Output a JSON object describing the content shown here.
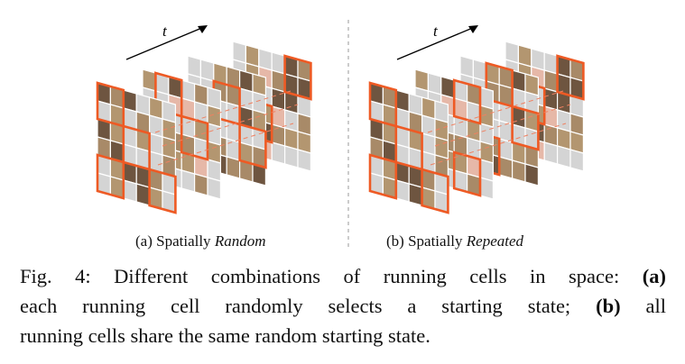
{
  "figure": {
    "time_axis_label": "t",
    "colors": {
      "highlight": "#ee5a24",
      "grey_cell": "#d4d4d4",
      "image_sand": "#a88a68",
      "image_dark": "#6e5540",
      "image_skin": "#e6b8a8",
      "dashed": "#f08060",
      "separator": "#999999"
    }
  },
  "subcaptions": {
    "a_prefix": "(a) Spatially ",
    "a_em": "Random",
    "b_prefix": "(b) Spatially ",
    "b_em": "Repeated"
  },
  "caption": {
    "line1_pre": "Fig. 4: Different combinations of running cells in space: ",
    "line1_bold": "(a)",
    "line2_pre": "each running cell randomly selects a starting state; ",
    "line2_bold": "(b)",
    "line2_post": " all",
    "line3": "running cells share the same random starting state."
  }
}
